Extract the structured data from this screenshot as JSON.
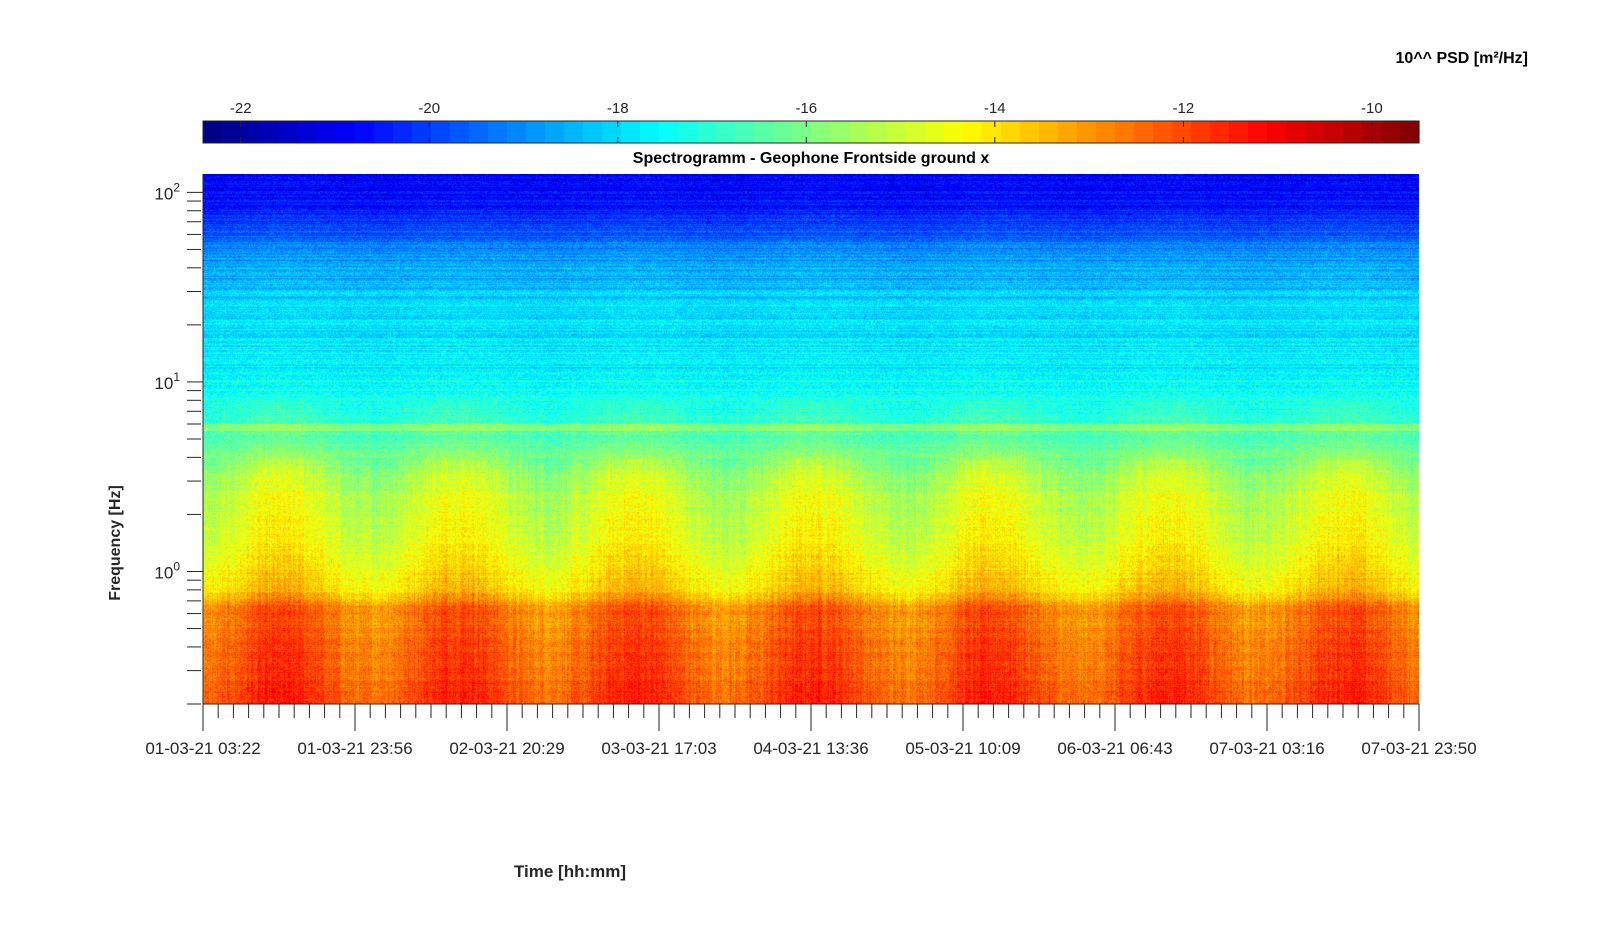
{
  "chart_data": {
    "type": "heatmap",
    "title": "Spectrogramm - Geophone Frontside ground x",
    "xlabel": "Time [hh:mm]",
    "ylabel": "Frequency [Hz]",
    "x_tick_labels": [
      "01-03-21 03:22",
      "01-03-21 23:56",
      "02-03-21 20:29",
      "03-03-21 17:03",
      "04-03-21 13:36",
      "05-03-21 10:09",
      "06-03-21 06:43",
      "07-03-21 03:16",
      "07-03-21 23:50"
    ],
    "y_scale": "log",
    "ylim": [
      0.2,
      125
    ],
    "y_ticks": [
      {
        "base": "10",
        "exp": "0",
        "value": 1
      },
      {
        "base": "10",
        "exp": "1",
        "value": 10
      },
      {
        "base": "10",
        "exp": "2",
        "value": 100
      }
    ],
    "colorbar": {
      "label": "10^^ PSD [m²/Hz]",
      "colormap": "jet",
      "range": [
        -22.4,
        -9.5
      ],
      "ticks": [
        -22,
        -20,
        -18,
        -16,
        -14,
        -12,
        -10
      ],
      "tick_labels": [
        "-22",
        "-20",
        "-18",
        "-16",
        "-14",
        "-12",
        "-10"
      ]
    },
    "grid": false,
    "level_profile_by_frequency_hz": [
      {
        "f": 125,
        "level": -21.0
      },
      {
        "f": 80,
        "level": -20.5
      },
      {
        "f": 50,
        "level": -19.0
      },
      {
        "f": 25,
        "level": -18.0
      },
      {
        "f": 10,
        "level": -17.6
      },
      {
        "f": 6,
        "level": -16.8
      },
      {
        "f": 3,
        "level": -15.2
      },
      {
        "f": 1.5,
        "level": -14.6
      },
      {
        "f": 0.8,
        "level": -13.8
      },
      {
        "f": 0.65,
        "level": -12.6
      },
      {
        "f": 0.2,
        "level": -11.9
      }
    ]
  }
}
